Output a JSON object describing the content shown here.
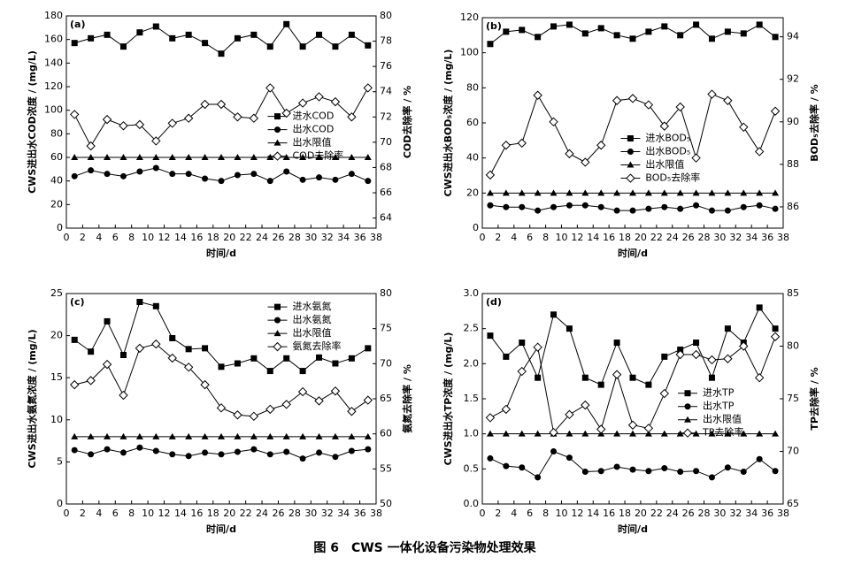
{
  "caption": "图 6　CWS 一体化设备污染物处理效果",
  "chart_data": [
    {
      "type": "line",
      "panel_label": "(a)",
      "xlabel": "时间/d",
      "ylabel": "CWS进出水COD浓度 / (mg/L)",
      "y2label": "COD去除率 / %",
      "legend": "center right",
      "x": [
        1,
        3,
        5,
        7,
        9,
        11,
        13,
        15,
        17,
        19,
        21,
        23,
        25,
        27,
        29,
        31,
        33,
        35,
        37
      ],
      "xlim": [
        0,
        38
      ],
      "xticks": [
        0,
        2,
        4,
        6,
        8,
        10,
        12,
        14,
        16,
        18,
        20,
        22,
        24,
        26,
        28,
        30,
        32,
        34,
        36,
        38
      ],
      "ylim": [
        0,
        180
      ],
      "yticks": [
        0,
        20,
        40,
        60,
        80,
        100,
        120,
        140,
        160,
        180
      ],
      "y2lim": [
        63.2,
        80
      ],
      "y2ticks": [
        64,
        66,
        68,
        70,
        72,
        74,
        76,
        78,
        80
      ],
      "series": [
        {
          "name": "进水COD",
          "color": "#000000",
          "marker": "square",
          "values": [
            157,
            161,
            164,
            154,
            166,
            171,
            161,
            164,
            157,
            148,
            161,
            164,
            154,
            173,
            154,
            164,
            154,
            164,
            155
          ]
        },
        {
          "name": "出水COD",
          "color": "#000000",
          "marker": "circle",
          "values": [
            44,
            49,
            46,
            44,
            48,
            51,
            46,
            46,
            42,
            40,
            45,
            46,
            40,
            48,
            41,
            43,
            41,
            46,
            40
          ]
        },
        {
          "name": "出水限值",
          "color": "#000000",
          "marker": "triangle",
          "values": [
            60,
            60,
            60,
            60,
            60,
            60,
            60,
            60,
            60,
            60,
            60,
            60,
            60,
            60,
            60,
            60,
            60,
            60,
            60
          ]
        },
        {
          "name": "COD去除率",
          "color": "#000000",
          "marker": "diamond",
          "axis": "y2",
          "values": [
            72.2,
            69.7,
            71.8,
            71.3,
            71.4,
            70.1,
            71.5,
            71.9,
            73.0,
            73.0,
            72.0,
            71.9,
            74.3,
            72.3,
            73.1,
            73.6,
            73.2,
            72.0,
            74.3
          ]
        }
      ]
    },
    {
      "type": "line",
      "panel_label": "(b)",
      "xlabel": "时间/d",
      "ylabel": "CWS进出水BOD₅浓度 / (mg/L)",
      "y2label": "BOD₅去除率 / %",
      "legend": "center",
      "x": [
        1,
        3,
        5,
        7,
        9,
        11,
        13,
        15,
        17,
        19,
        21,
        23,
        25,
        27,
        29,
        31,
        33,
        35,
        37
      ],
      "xlim": [
        0,
        38
      ],
      "xticks": [
        0,
        2,
        4,
        6,
        8,
        10,
        12,
        14,
        16,
        18,
        20,
        22,
        24,
        26,
        28,
        30,
        32,
        34,
        36,
        38
      ],
      "ylim": [
        0,
        120
      ],
      "yticks": [
        0,
        20,
        40,
        60,
        80,
        100,
        120
      ],
      "y2lim": [
        85,
        94.9
      ],
      "y2ticks": [
        86,
        88,
        90,
        92,
        94
      ],
      "series": [
        {
          "name": "进水BOD₅",
          "color": "#000000",
          "marker": "square",
          "values": [
            105,
            112,
            113,
            109,
            115,
            116,
            111,
            114,
            110,
            108,
            112,
            115,
            110,
            116,
            108,
            112,
            111,
            116,
            109
          ]
        },
        {
          "name": "出水BOD₅",
          "color": "#000000",
          "marker": "circle",
          "values": [
            13,
            12,
            12,
            10,
            12,
            13,
            13,
            12,
            10,
            10,
            11,
            12,
            11,
            13,
            10,
            10,
            12,
            13,
            11
          ]
        },
        {
          "name": "出水限值",
          "color": "#000000",
          "marker": "triangle",
          "values": [
            20,
            20,
            20,
            20,
            20,
            20,
            20,
            20,
            20,
            20,
            20,
            20,
            20,
            20,
            20,
            20,
            20,
            20,
            20
          ]
        },
        {
          "name": "BOD₅去除率",
          "color": "#000000",
          "marker": "diamond",
          "axis": "y2",
          "values": [
            87.5,
            88.9,
            89.0,
            91.25,
            90.0,
            88.5,
            88.1,
            88.9,
            91.0,
            91.1,
            90.8,
            89.8,
            90.7,
            88.3,
            91.3,
            91.0,
            89.75,
            88.6,
            90.5
          ]
        }
      ]
    },
    {
      "type": "line",
      "panel_label": "(c)",
      "xlabel": "时间/d",
      "ylabel": "CWS进出水氨氮浓度 / (mg/L)",
      "y2label": "氨氮去除率 / %",
      "legend": "upper right",
      "x": [
        1,
        3,
        5,
        7,
        9,
        11,
        13,
        15,
        17,
        19,
        21,
        23,
        25,
        27,
        29,
        31,
        33,
        35,
        37
      ],
      "xlim": [
        0,
        38
      ],
      "xticks": [
        0,
        2,
        4,
        6,
        8,
        10,
        12,
        14,
        16,
        18,
        20,
        22,
        24,
        26,
        28,
        30,
        32,
        34,
        36,
        38
      ],
      "ylim": [
        0,
        25
      ],
      "yticks": [
        0,
        5,
        10,
        15,
        20,
        25
      ],
      "y2lim": [
        50,
        80
      ],
      "y2ticks": [
        50,
        55,
        60,
        65,
        70,
        75,
        80
      ],
      "series": [
        {
          "name": "进水氨氮",
          "color": "#000000",
          "marker": "square",
          "values": [
            19.5,
            18.1,
            21.7,
            17.7,
            24.0,
            23.5,
            19.7,
            18.4,
            18.5,
            16.3,
            16.7,
            17.3,
            15.8,
            17.3,
            15.8,
            17.4,
            16.7,
            17.3,
            18.5
          ]
        },
        {
          "name": "出水氨氮",
          "color": "#000000",
          "marker": "circle",
          "values": [
            6.4,
            5.9,
            6.5,
            6.1,
            6.7,
            6.3,
            5.9,
            5.7,
            6.1,
            5.9,
            6.2,
            6.5,
            5.9,
            6.2,
            5.4,
            6.1,
            5.6,
            6.3,
            6.5
          ]
        },
        {
          "name": "出水限值",
          "color": "#000000",
          "marker": "triangle",
          "values": [
            8,
            8,
            8,
            8,
            8,
            8,
            8,
            8,
            8,
            8,
            8,
            8,
            8,
            8,
            8,
            8,
            8,
            8,
            8
          ]
        },
        {
          "name": "氨氮去除率",
          "color": "#000000",
          "marker": "diamond",
          "axis": "y2",
          "values": [
            67.0,
            67.6,
            69.9,
            65.5,
            72.2,
            72.8,
            70.8,
            69.5,
            67.0,
            63.7,
            62.7,
            62.5,
            63.5,
            64.2,
            66.0,
            64.7,
            66.1,
            63.2,
            64.8
          ]
        }
      ]
    },
    {
      "type": "line",
      "panel_label": "(d)",
      "xlabel": "时间/d",
      "ylabel": "CWS进出水TP浓度 / (mg/L)",
      "y2label": "TP去除率 / %",
      "legend": "center right",
      "x": [
        1,
        3,
        5,
        7,
        9,
        11,
        13,
        15,
        17,
        19,
        21,
        23,
        25,
        27,
        29,
        31,
        33,
        35,
        37
      ],
      "xlim": [
        0,
        38
      ],
      "xticks": [
        0,
        2,
        4,
        6,
        8,
        10,
        12,
        14,
        16,
        18,
        20,
        22,
        24,
        26,
        28,
        30,
        32,
        34,
        36,
        38
      ],
      "ylim": [
        0,
        3
      ],
      "yticks": [
        {
          "value": 0,
          "label": "0.0"
        },
        0.5,
        {
          "value": 1,
          "label": "1.0"
        },
        1.5,
        {
          "value": 2,
          "label": "2.0"
        },
        2.5,
        {
          "value": 3,
          "label": "3.0"
        }
      ],
      "y2lim": [
        65,
        85
      ],
      "y2ticks": [
        65,
        70,
        75,
        80,
        85
      ],
      "series": [
        {
          "name": "进水TP",
          "color": "#000000",
          "marker": "square",
          "values": [
            2.4,
            2.1,
            2.3,
            1.8,
            2.7,
            2.5,
            1.8,
            1.7,
            2.3,
            1.8,
            1.7,
            2.1,
            2.2,
            2.3,
            1.8,
            2.5,
            2.3,
            2.8,
            2.5
          ]
        },
        {
          "name": "出水TP",
          "color": "#000000",
          "marker": "circle",
          "values": [
            0.65,
            0.54,
            0.52,
            0.38,
            0.75,
            0.66,
            0.46,
            0.47,
            0.53,
            0.49,
            0.47,
            0.51,
            0.46,
            0.47,
            0.38,
            0.52,
            0.46,
            0.64,
            0.47
          ]
        },
        {
          "name": "出水限值",
          "color": "#000000",
          "marker": "triangle",
          "values": [
            1,
            1,
            1,
            1,
            1,
            1,
            1,
            1,
            1,
            1,
            1,
            1,
            1,
            1,
            1,
            1,
            1,
            1,
            1
          ]
        },
        {
          "name": "TP去除率",
          "color": "#000000",
          "marker": "diamond",
          "axis": "y2",
          "values": [
            73.2,
            74.0,
            77.6,
            79.9,
            71.8,
            73.5,
            74.4,
            72.1,
            77.3,
            72.5,
            72.2,
            75.5,
            79.2,
            79.2,
            78.7,
            78.8,
            80.0,
            77.0,
            80.9
          ]
        }
      ]
    }
  ]
}
